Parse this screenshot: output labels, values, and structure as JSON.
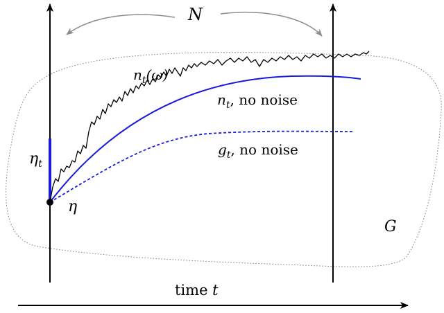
{
  "labels": {
    "N": "N",
    "n_omega_main": "n",
    "n_omega_sub": "t",
    "n_omega_rest": "(ω)",
    "n_nonoise_main": "n",
    "n_nonoise_sub": "t",
    "n_nonoise_rest": ", no noise",
    "g_nonoise_main": "g",
    "g_nonoise_sub": "t",
    "g_nonoise_rest": ", no noise",
    "eta_t_main": "η",
    "eta_t_sub": "t",
    "eta": "η",
    "G": "G",
    "time_prefix": "time ",
    "time_var": "t"
  },
  "colors": {
    "axis": "#000000",
    "region": "#7a7a7a",
    "curve_deterministic": "#1a1adb",
    "noisy_path": "#000000",
    "curved_arrow": "#8c8c8c"
  }
}
